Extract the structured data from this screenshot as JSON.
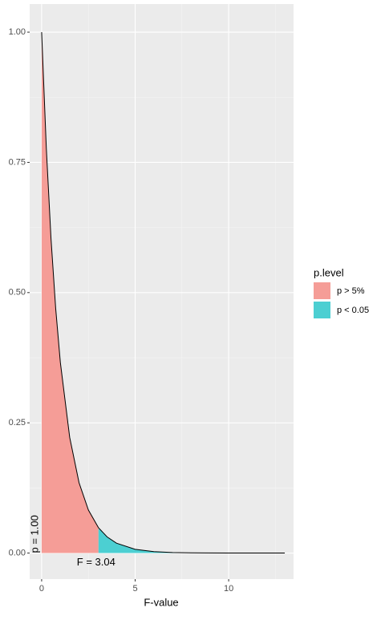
{
  "chart_data": {
    "type": "area",
    "x": [
      0,
      0.25,
      0.5,
      0.75,
      1,
      1.5,
      2,
      2.5,
      3.04,
      3.5,
      4,
      5,
      6,
      7,
      8,
      10,
      13
    ],
    "series": [
      {
        "name": "p > 5%",
        "color": "#f59d97",
        "values": [
          1,
          0.777,
          0.604,
          0.47,
          0.366,
          0.222,
          0.135,
          0.0826,
          0.0486,
          null,
          null,
          null,
          null,
          null,
          null,
          null,
          null
        ]
      },
      {
        "name": "p < 0.05",
        "color": "#4ccfd2",
        "values": [
          null,
          null,
          null,
          null,
          null,
          null,
          null,
          null,
          0.0486,
          0.031,
          0.019,
          0.0072,
          0.0028,
          0.0011,
          0.0004,
          0.0001,
          0
        ]
      }
    ],
    "line_color": "#000000",
    "xlim": [
      -0.64,
      13.47
    ],
    "ylim": [
      -0.05,
      1.054
    ],
    "xticks": [
      0,
      5,
      10
    ],
    "yticks": [
      {
        "value": 0,
        "label": "0.00"
      },
      {
        "value": 0.25,
        "label": "0.25"
      },
      {
        "value": 0.5,
        "label": "0.50"
      },
      {
        "value": 0.75,
        "label": "0.75"
      },
      {
        "value": 1,
        "label": "1.00"
      }
    ],
    "x_label": "F-value",
    "legend_title": "p.level",
    "annotations": [
      "p = 1.00",
      "F = 3.04"
    ],
    "grid": true
  }
}
